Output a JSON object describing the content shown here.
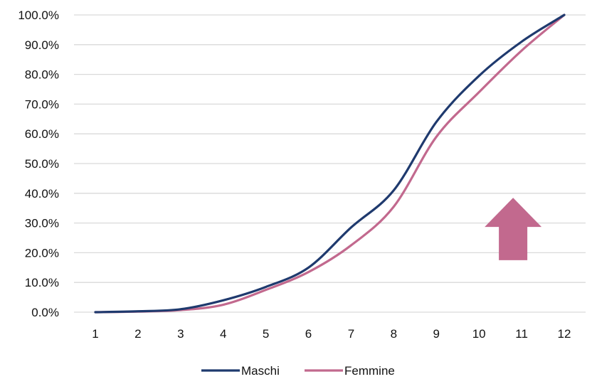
{
  "chart_data": {
    "type": "line",
    "title": "",
    "xlabel": "",
    "ylabel": "",
    "categories": [
      "1",
      "2",
      "3",
      "4",
      "5",
      "6",
      "7",
      "8",
      "9",
      "10",
      "11",
      "12"
    ],
    "x": [
      1,
      2,
      3,
      4,
      5,
      6,
      7,
      8,
      9,
      10,
      11,
      12
    ],
    "ylim": [
      0,
      100
    ],
    "yticks": [
      "0.0%",
      "10.0%",
      "20.0%",
      "30.0%",
      "40.0%",
      "50.0%",
      "60.0%",
      "70.0%",
      "80.0%",
      "90.0%",
      "100.0%"
    ],
    "grid": true,
    "legend_position": "bottom",
    "series": [
      {
        "name": "Maschi",
        "color": "#1f3a6e",
        "values": [
          0,
          0.3,
          1.0,
          4.0,
          8.5,
          15.0,
          28.5,
          41.0,
          64.0,
          79.5,
          91.0,
          100.0
        ]
      },
      {
        "name": "Femmine",
        "color": "#c2698e",
        "values": [
          0,
          0.2,
          0.7,
          2.5,
          7.5,
          13.5,
          22.5,
          35.5,
          59.0,
          74.0,
          88.0,
          100.0
        ]
      }
    ],
    "annotations": [
      {
        "type": "arrow-up",
        "color": "#c2698e",
        "x": 10.8,
        "y_top": 38.5,
        "y_bottom": 17.5
      }
    ]
  }
}
